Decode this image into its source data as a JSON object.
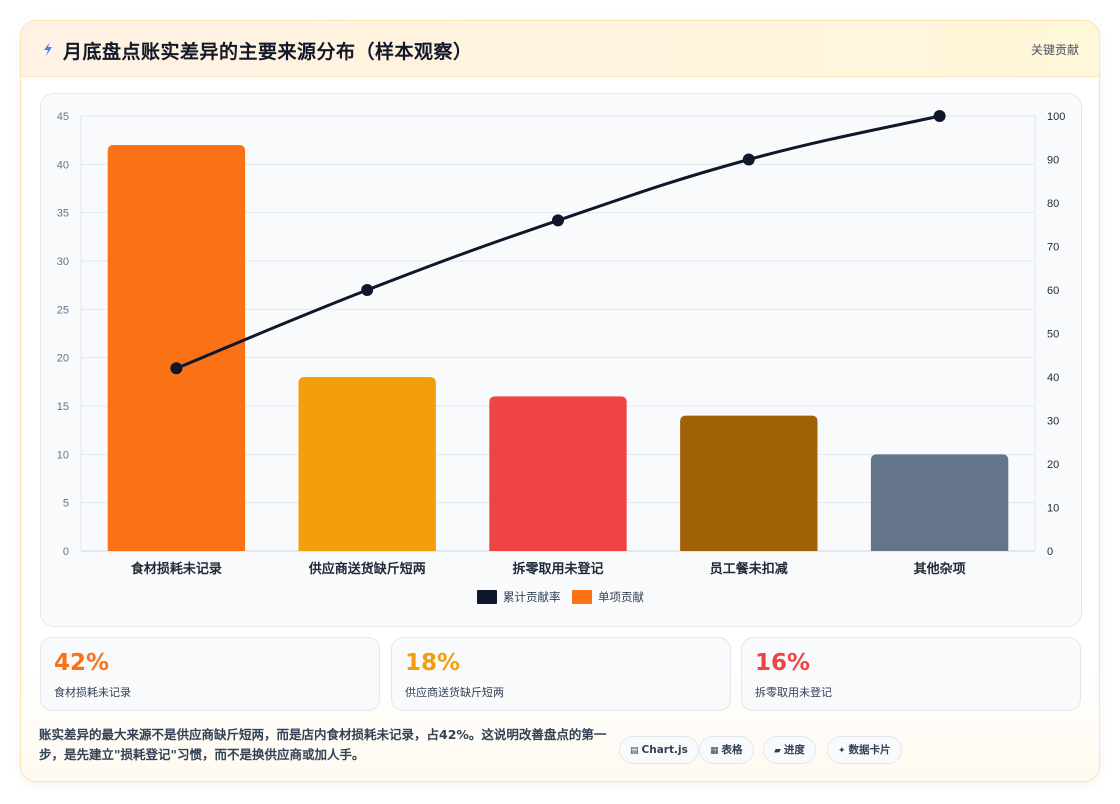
{
  "header": {
    "title": "月底盘点账实差异的主要来源分布（样本观察）",
    "badge": "关键贡献"
  },
  "chart_data": {
    "type": "bar",
    "categories": [
      "食材损耗未记录",
      "供应商送货缺斤短两",
      "拆零取用未登记",
      "员工餐未扣减",
      "其他杂项"
    ],
    "series": [
      {
        "name": "单项贡献",
        "type": "bar",
        "axis": "left",
        "values": [
          42,
          18,
          16,
          14,
          10
        ],
        "colors": [
          "#f97316",
          "#f59e0b",
          "#ef4444",
          "#a16207",
          "#64748b"
        ]
      },
      {
        "name": "累计贡献率",
        "type": "line",
        "axis": "right",
        "values": [
          42,
          60,
          76,
          90,
          100
        ],
        "color": "#0f172a"
      }
    ],
    "ylim": [
      0,
      45
    ],
    "yticks": [
      0,
      5,
      10,
      15,
      20,
      25,
      30,
      35,
      40,
      45
    ],
    "y2lim": [
      0,
      100
    ],
    "y2ticks": [
      0,
      10,
      20,
      30,
      40,
      50,
      60,
      70,
      80,
      90,
      100
    ],
    "legend": {
      "position": "bottom",
      "order": [
        "累计贡献率",
        "单项贡献"
      ]
    },
    "grid": true,
    "xlabel": "",
    "ylabel": "",
    "title": ""
  },
  "stats": [
    {
      "value": "42%",
      "label": "食材损耗未记录",
      "color": "#f97316"
    },
    {
      "value": "18%",
      "label": "供应商送货缺斤短两",
      "color": "#f59e0b"
    },
    {
      "value": "16%",
      "label": "拆零取用未登记",
      "color": "#ef4444"
    }
  ],
  "summary": "账实差异的最大来源不是供应商缺斤短两，而是店内食材损耗未记录，占42%。这说明改善盘点的第一步，是先建立\"损耗登记\"习惯，而不是换供应商或加人手。",
  "tags": [
    {
      "icon": "▤",
      "label": "Chart.js",
      "icon_name": "chart-icon"
    },
    {
      "icon": "▦",
      "label": "表格",
      "icon_name": "table-icon"
    },
    {
      "icon": "▰",
      "label": "进度",
      "icon_name": "progress-icon"
    },
    {
      "icon": "✦",
      "label": "数据卡片",
      "icon_name": "sparkle-icon"
    }
  ]
}
